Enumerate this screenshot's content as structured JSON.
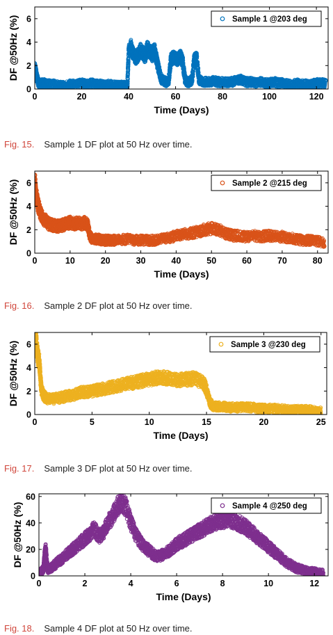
{
  "chart_data": [
    {
      "type": "scatter",
      "color": "#0072BD",
      "xlim": [
        0,
        125
      ],
      "ylim": [
        0,
        7
      ],
      "xticks": [
        0,
        20,
        40,
        60,
        80,
        100,
        120
      ],
      "yticks": [
        0,
        2,
        4,
        6
      ],
      "xlabel": "Time (Days)",
      "ylabel": "DF @50Hz (%)",
      "legend": "Sample 1 @203 deg",
      "legend_position": "top-right",
      "caption_label": "Fig. 15.",
      "caption_text": "Sample 1 DF plot at 50 Hz over time.",
      "series": [
        {
          "name": "Sample 1 @203 deg",
          "x": [
            0,
            0.5,
            1,
            1.5,
            2,
            3,
            4,
            5,
            6,
            8,
            10,
            12,
            14,
            16,
            18,
            20,
            22,
            24,
            26,
            28,
            30,
            32,
            34,
            36,
            38,
            39,
            39.5,
            40,
            41,
            42,
            43,
            44,
            45,
            46,
            47,
            48,
            49,
            50,
            51,
            52,
            53,
            54,
            55,
            56,
            57,
            58,
            59,
            60,
            61,
            62,
            63,
            64,
            65,
            66,
            67,
            68,
            69,
            70,
            72,
            74,
            76,
            78,
            80,
            82,
            84,
            86,
            88,
            90,
            92,
            94,
            96,
            98,
            100,
            102,
            104,
            106,
            108,
            110,
            112,
            114,
            116,
            118,
            120,
            122,
            124
          ],
          "y": [
            1.8,
            1.4,
            0.9,
            0.6,
            0.4,
            0.5,
            0.5,
            0.4,
            0.4,
            0.4,
            0.3,
            0.3,
            0.4,
            0.4,
            0.4,
            0.5,
            0.4,
            0.5,
            0.4,
            0.4,
            0.3,
            0.4,
            0.3,
            0.3,
            0.3,
            0.2,
            0.4,
            3.2,
            3.6,
            3.0,
            2.6,
            2.9,
            3.3,
            3.1,
            2.8,
            3.5,
            3.2,
            2.9,
            3.4,
            2.4,
            1.5,
            0.8,
            0.7,
            0.6,
            0.6,
            2.5,
            2.7,
            2.6,
            2.5,
            2.8,
            2.4,
            0.8,
            0.6,
            0.6,
            0.8,
            2.5,
            2.6,
            0.8,
            0.6,
            0.6,
            0.7,
            0.6,
            0.6,
            0.6,
            0.6,
            0.7,
            0.8,
            0.6,
            0.6,
            0.5,
            0.6,
            0.5,
            0.5,
            0.6,
            0.5,
            0.5,
            0.4,
            0.4,
            0.5,
            0.4,
            0.4,
            0.4,
            0.5,
            0.5,
            0.5
          ]
        }
      ]
    },
    {
      "type": "scatter",
      "color": "#D95319",
      "xlim": [
        0,
        83
      ],
      "ylim": [
        0,
        7
      ],
      "xticks": [
        0,
        10,
        20,
        30,
        40,
        50,
        60,
        70,
        80
      ],
      "yticks": [
        0,
        2,
        4,
        6
      ],
      "xlabel": "Time (Days)",
      "ylabel": "DF @50Hz (%)",
      "legend": "Sample 2 @215 deg",
      "legend_position": "top-right",
      "caption_label": "Fig. 16.",
      "caption_text": "Sample 2 DF plot at 50 Hz over time.",
      "series": [
        {
          "name": "Sample 2 @215 deg",
          "x": [
            0,
            0.3,
            0.6,
            1,
            1.5,
            2,
            3,
            4,
            5,
            6,
            7,
            8,
            9,
            10,
            11,
            12,
            13,
            14,
            15,
            15.5,
            16,
            17,
            18,
            19,
            20,
            21,
            22,
            24,
            26,
            28,
            30,
            32,
            34,
            36,
            38,
            40,
            42,
            44,
            46,
            48,
            50,
            52,
            54,
            56,
            58,
            60,
            62,
            64,
            66,
            68,
            70,
            72,
            74,
            76,
            78,
            80,
            82
          ],
          "y": [
            6.2,
            5.2,
            4.6,
            4.0,
            3.6,
            3.1,
            2.8,
            2.5,
            2.4,
            2.3,
            2.3,
            2.4,
            2.5,
            2.6,
            2.5,
            2.6,
            2.5,
            2.6,
            2.4,
            1.6,
            1.3,
            1.2,
            1.2,
            1.1,
            1.1,
            1.1,
            1.1,
            1.1,
            1.2,
            1.1,
            1.1,
            1.1,
            1.1,
            1.2,
            1.3,
            1.5,
            1.6,
            1.7,
            1.8,
            2.0,
            2.1,
            2.0,
            1.7,
            1.5,
            1.5,
            1.4,
            1.5,
            1.4,
            1.5,
            1.4,
            1.4,
            1.3,
            1.2,
            1.1,
            1.1,
            1.0,
            0.9
          ]
        }
      ]
    },
    {
      "type": "scatter",
      "color": "#EDB120",
      "xlim": [
        0,
        25.5
      ],
      "ylim": [
        0,
        7
      ],
      "xticks": [
        0,
        5,
        10,
        15,
        20,
        25
      ],
      "yticks": [
        0,
        2,
        4,
        6
      ],
      "xlabel": "Time (Days)",
      "ylabel": "DF @50Hz (%)",
      "legend": "Sample 3 @230 deg",
      "legend_position": "top-right",
      "caption_label": "Fig. 17.",
      "caption_text": "Sample 3 DF plot at 50 Hz over time.",
      "series": [
        {
          "name": "Sample 3 @230 deg",
          "x": [
            0,
            0.1,
            0.2,
            0.3,
            0.4,
            0.5,
            0.6,
            0.8,
            1,
            1.5,
            2,
            2.5,
            3,
            3.5,
            4,
            4.5,
            5,
            5.5,
            6,
            6.5,
            7,
            7.5,
            8,
            8.5,
            9,
            9.5,
            10,
            10.5,
            11,
            11.5,
            12,
            12.5,
            13,
            13.5,
            14,
            14.5,
            14.8,
            15,
            15.3,
            15.6,
            16,
            16.5,
            17,
            17.5,
            18,
            18.5,
            19,
            19.5,
            20,
            20.5,
            21,
            21.5,
            22,
            22.5,
            23,
            23.5,
            24,
            24.5,
            25
          ],
          "y": [
            6.6,
            6.4,
            5.5,
            4.8,
            4.5,
            3.0,
            2.0,
            1.6,
            1.4,
            1.3,
            1.4,
            1.5,
            1.6,
            1.7,
            1.9,
            1.9,
            2.0,
            2.1,
            2.2,
            2.3,
            2.4,
            2.5,
            2.6,
            2.7,
            2.8,
            2.9,
            3.0,
            3.1,
            3.2,
            3.1,
            3.0,
            2.9,
            3.0,
            3.0,
            3.1,
            2.8,
            2.6,
            2.1,
            1.0,
            0.7,
            0.7,
            0.7,
            0.6,
            0.6,
            0.6,
            0.6,
            0.6,
            0.5,
            0.5,
            0.5,
            0.5,
            0.5,
            0.4,
            0.4,
            0.4,
            0.4,
            0.4,
            0.3,
            0.3
          ]
        }
      ]
    },
    {
      "type": "scatter",
      "color": "#7E2F8E",
      "xlim": [
        0,
        12.6
      ],
      "ylim": [
        0,
        62
      ],
      "xticks": [
        0,
        2,
        4,
        6,
        8,
        10,
        12
      ],
      "yticks": [
        0,
        20,
        40,
        60
      ],
      "xlabel": "Time (Days)",
      "ylabel": "DF @50Hz (%)",
      "legend": "Sample 4 @250 deg",
      "legend_position": "top-right",
      "caption_label": "Fig. 18.",
      "caption_text": "Sample 4 DF plot at 50 Hz over time.",
      "series": [
        {
          "name": "Sample 4 @250 deg",
          "x": [
            0,
            0.1,
            0.2,
            0.25,
            0.3,
            0.35,
            0.4,
            0.6,
            0.8,
            1,
            1.2,
            1.4,
            1.6,
            1.8,
            2,
            2.2,
            2.4,
            2.6,
            2.8,
            3,
            3.2,
            3.4,
            3.6,
            3.8,
            4,
            4.2,
            4.4,
            4.6,
            4.8,
            5,
            5.2,
            5.4,
            5.6,
            5.8,
            6,
            6.2,
            6.4,
            6.6,
            6.8,
            7,
            7.2,
            7.4,
            7.6,
            7.8,
            8,
            8.2,
            8.4,
            8.6,
            8.8,
            9,
            9.2,
            9.4,
            9.6,
            9.8,
            10,
            10.2,
            10.4,
            10.6,
            10.8,
            11,
            11.2,
            11.4,
            11.6,
            11.8,
            12,
            12.2,
            12.4
          ],
          "y": [
            2,
            3,
            6,
            16,
            20,
            8,
            5,
            7,
            10,
            13,
            16,
            19,
            22,
            25,
            28,
            31,
            36,
            30,
            32,
            40,
            45,
            52,
            56,
            52,
            40,
            32,
            26,
            22,
            19,
            16,
            15,
            16,
            18,
            21,
            24,
            26,
            28,
            30,
            32,
            34,
            36,
            38,
            40,
            41,
            42,
            43,
            42,
            41,
            39,
            37,
            34,
            31,
            28,
            25,
            22,
            19,
            16,
            13,
            10,
            8,
            6,
            5,
            4,
            3,
            3,
            2,
            2
          ]
        }
      ]
    }
  ]
}
